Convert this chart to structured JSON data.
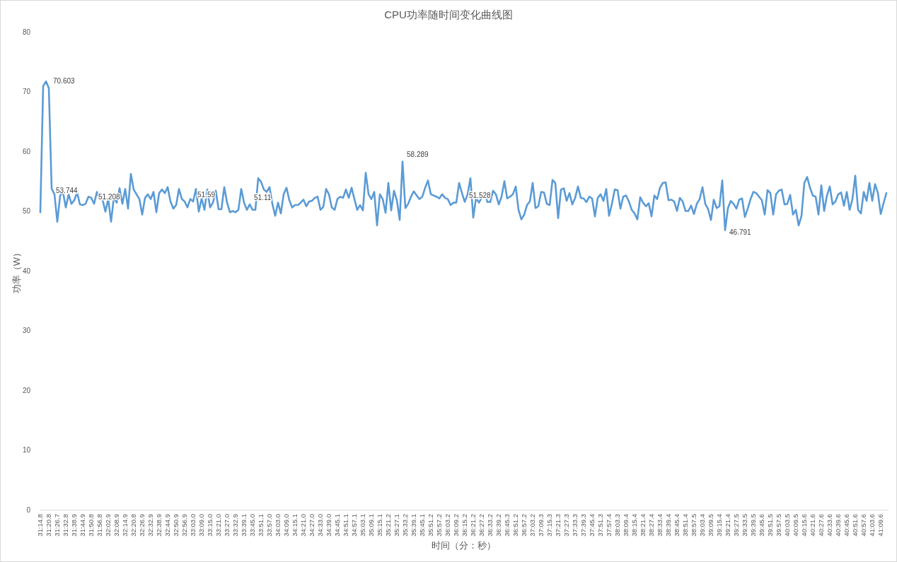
{
  "chart_data": {
    "type": "line",
    "title": "CPU功率随时间变化曲线图",
    "xlabel": "时间（分：秒）",
    "ylabel": "功率（W）",
    "categories": [
      "31:14.8",
      null,
      null,
      "31:20.8",
      null,
      null,
      "31:26.7",
      null,
      null,
      "31:32.8",
      null,
      null,
      "31:38.9",
      null,
      null,
      "31:44.9",
      null,
      null,
      "31:50.8",
      null,
      null,
      "31:56.8",
      null,
      null,
      "32:02.9",
      null,
      null,
      "32:08.9",
      null,
      null,
      "32:14.9",
      null,
      null,
      "32:20.8",
      null,
      null,
      "32:26.9",
      null,
      null,
      "32:32.9",
      null,
      null,
      "32:38.9",
      null,
      null,
      "32:44.9",
      null,
      null,
      "32:50.9",
      null,
      null,
      "32:56.9",
      null,
      null,
      "33:03.0",
      null,
      null,
      "33:09.0",
      null,
      null,
      "33:15.0",
      null,
      null,
      "33:21.0",
      null,
      null,
      "33:27.0",
      null,
      null,
      "33:32.9",
      null,
      null,
      "33:39.1",
      null,
      null,
      "33:45.0",
      null,
      null,
      "33:51.1",
      null,
      null,
      "33:57.0",
      null,
      null,
      "34:03.0",
      null,
      null,
      "34:09.0",
      null,
      null,
      "34:15.1",
      null,
      null,
      "34:21.0",
      null,
      null,
      "34:27.0",
      null,
      null,
      "34:33.0",
      null,
      null,
      "34:39.0",
      null,
      null,
      "34:45.1",
      null,
      null,
      "34:51.1",
      null,
      null,
      "34:57.1",
      null,
      null,
      "35:03.1",
      null,
      null,
      "35:09.1",
      null,
      null,
      "35:15.1",
      null,
      null,
      "35:21.2",
      null,
      null,
      "35:27.1",
      null,
      null,
      "35:33.2",
      null,
      null,
      "35:39.1",
      null,
      null,
      "35:45.1",
      null,
      null,
      "35:51.2",
      null,
      null,
      "35:57.2",
      null,
      null,
      "36:03.2",
      null,
      null,
      "36:09.2",
      null,
      null,
      "36:15.2",
      null,
      null,
      "36:21.2",
      null,
      null,
      "36:27.2",
      null,
      null,
      "36:33.2",
      null,
      null,
      "36:39.2",
      null,
      null,
      "36:45.3",
      null,
      null,
      "36:51.2",
      null,
      null,
      "36:57.2",
      null,
      null,
      "37:03.2",
      null,
      null,
      "37:09.3",
      null,
      null,
      "37:15.3",
      null,
      null,
      "37:21.3",
      null,
      null,
      "37:27.3",
      null,
      null,
      "37:33.3",
      null,
      null,
      "37:39.3",
      null,
      null,
      "37:45.4",
      null,
      null,
      "37:51.3",
      null,
      null,
      "37:57.4",
      null,
      null,
      "38:03.3",
      null,
      null,
      "38:09.4",
      null,
      null,
      "38:15.4",
      null,
      null,
      "38:21.4",
      null,
      null,
      "38:27.4",
      null,
      null,
      "38:33.4",
      null,
      null,
      "38:39.4",
      null,
      null,
      "38:45.4",
      null,
      null,
      "38:51.4",
      null,
      null,
      "38:57.5",
      null,
      null,
      "39:03.4",
      null,
      null,
      "39:09.5",
      null,
      null,
      "39:15.4",
      null,
      null,
      "39:21.4",
      null,
      null,
      "39:27.5",
      null,
      null,
      "39:33.5",
      null,
      null,
      "39:39.5",
      null,
      null,
      "39:45.6",
      null,
      null,
      "39:51.5",
      null,
      null,
      "39:57.5",
      null,
      null,
      "40:03.5",
      null,
      null,
      "40:09.5",
      null,
      null,
      "40:15.6",
      null,
      null,
      "40:21.6",
      null,
      null,
      "40:27.6",
      null,
      null,
      "40:33.6",
      null,
      null,
      "40:39.6",
      null,
      null,
      "40:45.6",
      null,
      null,
      "40:51.6",
      null,
      null,
      "40:57.6",
      null,
      null,
      "41:03.6",
      null,
      null,
      "41:09.6",
      null,
      null
    ],
    "series": [
      {
        "color": "#5b9bd5",
        "values": [
          49.8,
          70.9,
          71.7,
          70.603,
          53.744,
          52.8,
          48.2,
          52.6,
          53.2,
          50.6,
          52.8,
          51.2,
          51.8,
          53.1,
          51.1,
          51.0,
          51.2,
          52.4,
          52.2,
          51.208,
          53.2,
          52.0,
          51.9,
          49.9,
          52.0,
          48.2,
          52.3,
          51.4,
          53.8,
          51.2,
          53.7,
          50.4,
          56.2,
          53.6,
          52.8,
          52.0,
          49.4,
          52.2,
          52.8,
          52.0,
          53.2,
          49.8,
          53.0,
          53.6,
          53.0,
          54.0,
          51.6,
          50.4,
          51.0,
          53.7,
          52.0,
          51.6,
          50.6,
          52.0,
          51.59,
          53.7,
          49.9,
          52.1,
          50.2,
          53.6,
          50.6,
          51.4,
          53.4,
          50.3,
          50.3,
          54.0,
          51.4,
          49.8,
          50.0,
          49.8,
          50.2,
          53.7,
          51.4,
          50.2,
          51.11,
          50.2,
          50.2,
          55.5,
          54.9,
          53.6,
          53.2,
          54.0,
          51.2,
          49.2,
          51.4,
          49.6,
          52.8,
          53.9,
          51.8,
          50.6,
          51.0,
          51.0,
          51.4,
          51.9,
          50.8,
          51.6,
          51.7,
          52.2,
          52.4,
          50.2,
          50.7,
          53.7,
          52.8,
          50.6,
          50.2,
          52.0,
          52.4,
          52.2,
          53.6,
          52.2,
          53.9,
          52.0,
          50.2,
          51.0,
          50.1,
          56.4,
          52.8,
          52.0,
          53.2,
          47.6,
          52.8,
          52.0,
          49.7,
          54.7,
          50.1,
          53.4,
          51.8,
          48.5,
          58.289,
          50.5,
          51.2,
          52.4,
          53.3,
          52.6,
          52.0,
          52.4,
          53.9,
          55.1,
          52.8,
          52.6,
          52.4,
          52.1,
          52.8,
          52.2,
          52.0,
          51.0,
          51.4,
          51.4,
          54.7,
          53.0,
          51.528,
          52.8,
          55.5,
          48.9,
          52.2,
          51.4,
          52.2,
          53.2,
          51.5,
          51.5,
          53.4,
          52.8,
          51.1,
          52.4,
          55.0,
          52.1,
          52.4,
          52.8,
          54.1,
          50.2,
          48.6,
          49.4,
          51.0,
          51.6,
          54.7,
          50.5,
          50.8,
          53.2,
          53.1,
          51.2,
          51.0,
          55.2,
          54.7,
          48.8,
          53.6,
          53.8,
          51.7,
          53.0,
          51.1,
          52.2,
          54.1,
          52.2,
          52.1,
          51.5,
          52.4,
          52.1,
          49.1,
          52.2,
          52.8,
          51.7,
          53.7,
          49.2,
          51.2,
          53.6,
          53.5,
          50.4,
          52.4,
          52.6,
          51.6,
          50.2,
          49.6,
          48.6,
          52.3,
          51.4,
          50.8,
          51.3,
          49.1,
          52.6,
          52.0,
          53.9,
          54.7,
          54.8,
          51.8,
          51.9,
          51.6,
          50.0,
          52.2,
          51.6,
          50.0,
          50.0,
          50.9,
          49.5,
          51.2,
          52.0,
          54.0,
          51.2,
          50.3,
          48.5,
          51.9,
          50.5,
          50.8,
          55.1,
          46.791,
          50.5,
          51.7,
          51.2,
          50.4,
          51.9,
          52.1,
          49.0,
          50.4,
          52.0,
          53.2,
          53.0,
          52.4,
          51.8,
          49.4,
          53.5,
          53.0,
          49.4,
          52.8,
          53.4,
          53.6,
          51.1,
          51.2,
          52.7,
          49.4,
          50.2,
          47.6,
          49.2,
          54.7,
          55.7,
          53.9,
          52.6,
          52.4,
          49.4,
          54.3,
          50.0,
          52.6,
          54.1,
          51.1,
          51.6,
          52.8,
          53.1,
          50.9,
          53.2,
          50.2,
          52.0,
          55.9,
          50.2,
          49.6,
          53.2,
          51.7,
          54.7,
          51.7,
          54.5,
          53.0,
          49.5,
          51.3,
          53.0
        ],
        "value_labels": [
          null,
          null,
          null,
          "70.603",
          "53.744",
          null,
          null,
          null,
          null,
          null,
          null,
          null,
          null,
          null,
          null,
          null,
          null,
          null,
          null,
          "51.208",
          null,
          null,
          null,
          null,
          null,
          null,
          null,
          null,
          null,
          null,
          null,
          null,
          null,
          null,
          null,
          null,
          null,
          null,
          null,
          null,
          null,
          null,
          null,
          null,
          null,
          null,
          null,
          null,
          null,
          null,
          null,
          null,
          null,
          null,
          "51.59",
          null,
          null,
          null,
          null,
          null,
          null,
          null,
          null,
          null,
          null,
          null,
          null,
          null,
          null,
          null,
          null,
          null,
          null,
          null,
          "51.11",
          null,
          null,
          null,
          null,
          null,
          null,
          null,
          null,
          null,
          null,
          null,
          null,
          null,
          null,
          null,
          null,
          null,
          null,
          null,
          null,
          null,
          null,
          null,
          null,
          null,
          null,
          null,
          null,
          null,
          null,
          null,
          null,
          null,
          null,
          null,
          null,
          null,
          null,
          null,
          null,
          null,
          null,
          null,
          null,
          null,
          null,
          null,
          null,
          null,
          null,
          null,
          null,
          null,
          "58.289",
          null,
          null,
          null,
          null,
          null,
          null,
          null,
          null,
          null,
          null,
          null,
          null,
          null,
          null,
          null,
          null,
          null,
          null,
          null,
          null,
          null,
          "51.528",
          null,
          null,
          null,
          null,
          null,
          null,
          null,
          null,
          null,
          null,
          null,
          null,
          null,
          null,
          null,
          null,
          null,
          null,
          null,
          null,
          null,
          null,
          null,
          null,
          null,
          null,
          null,
          null,
          null,
          null,
          null,
          null,
          null,
          null,
          null,
          null,
          null,
          null,
          null,
          null,
          null,
          null,
          null,
          null,
          null,
          null,
          null,
          null,
          null,
          null,
          null,
          null,
          null,
          null,
          null,
          null,
          null,
          null,
          null,
          null,
          null,
          null,
          null,
          null,
          null,
          null,
          null,
          null,
          null,
          null,
          null,
          null,
          null,
          null,
          null,
          null,
          null,
          null,
          null,
          null,
          null,
          null,
          null,
          null,
          null,
          null,
          null,
          null,
          null,
          null,
          null,
          "46.791",
          null,
          null,
          null,
          null,
          null,
          null,
          null,
          null,
          null,
          null,
          null,
          null,
          null,
          null,
          null,
          null,
          null,
          null,
          null,
          null,
          null,
          null,
          null,
          null,
          null,
          null,
          null,
          null,
          null,
          null,
          null,
          null,
          null,
          null,
          null,
          null,
          null,
          null,
          null,
          null,
          null,
          null,
          null,
          null,
          null,
          null,
          null,
          null,
          null,
          null,
          null,
          null,
          null,
          null,
          null,
          null,
          null
        ]
      }
    ],
    "ylim": [
      0,
      80
    ],
    "yticks": [
      0,
      10,
      20,
      30,
      40,
      50,
      60,
      70,
      80
    ],
    "grid": false,
    "marker": "none",
    "line_style": "solid"
  }
}
